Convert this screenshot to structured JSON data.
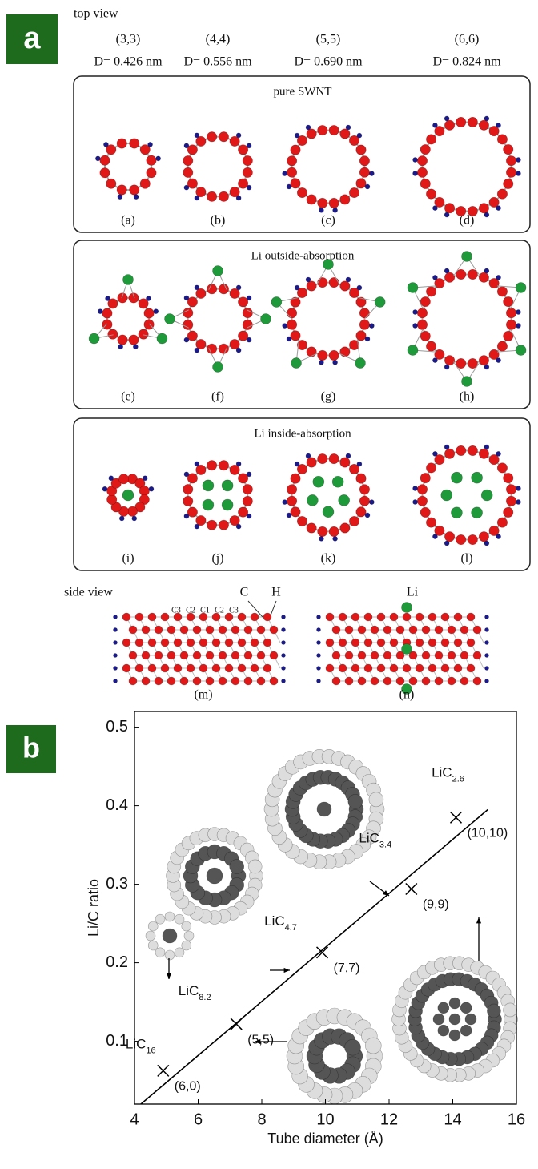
{
  "panel_a": {
    "label": "a",
    "top_view": "top view",
    "columns": [
      {
        "index": "(3,3)",
        "diameter": "D= 0.426 nm"
      },
      {
        "index": "(4,4)",
        "diameter": "D= 0.556 nm"
      },
      {
        "index": "(5,5)",
        "diameter": "D= 0.690 nm"
      },
      {
        "index": "(6,6)",
        "diameter": "D= 0.824 nm"
      }
    ],
    "boxes": [
      {
        "title": "pure SWNT",
        "panels": [
          "(a)",
          "(b)",
          "(c)",
          "(d)"
        ]
      },
      {
        "title": "Li outside-absorption",
        "panels": [
          "(e)",
          "(f)",
          "(g)",
          "(h)"
        ]
      },
      {
        "title": "Li inside-absorption",
        "panels": [
          "(i)",
          "(j)",
          "(k)",
          "(l)"
        ]
      }
    ],
    "side_view": {
      "title": "side view",
      "atom_labels": [
        "C",
        "H",
        "Li"
      ],
      "site_labels": [
        "C3",
        "C2",
        "C1",
        "C2",
        "C3"
      ],
      "panels": [
        "(m)",
        "(n)"
      ]
    }
  },
  "chart_data": {
    "type": "scatter",
    "panel_label": "b",
    "x_label": "Tube diameter (Å)",
    "y_label": "Li/C ratio",
    "x": [
      4.9,
      7.2,
      9.9,
      12.7,
      14.1
    ],
    "values": [
      0.0625,
      0.122,
      0.213,
      0.294,
      0.385
    ],
    "point_labels": [
      "(6,0)",
      "(5,5)",
      "(7,7)",
      "(9,9)",
      "(10,10)"
    ],
    "compounds": [
      {
        "base": "LiC",
        "sub": "16"
      },
      {
        "base": "LiC",
        "sub": "8.2"
      },
      {
        "base": "LiC",
        "sub": "4.7"
      },
      {
        "base": "LiC",
        "sub": "3.4"
      },
      {
        "base": "LiC",
        "sub": "2.6"
      }
    ],
    "fit": {
      "x": [
        4.2,
        15.1
      ],
      "values": [
        0.02,
        0.395
      ]
    },
    "color": "#000000",
    "xlim": [
      4,
      16
    ],
    "xticks": [
      4,
      6,
      8,
      10,
      12,
      14,
      16
    ],
    "ylim": [
      0.02,
      0.52
    ],
    "yticks": [
      0.1,
      0.2,
      0.3,
      0.4,
      0.5
    ]
  }
}
